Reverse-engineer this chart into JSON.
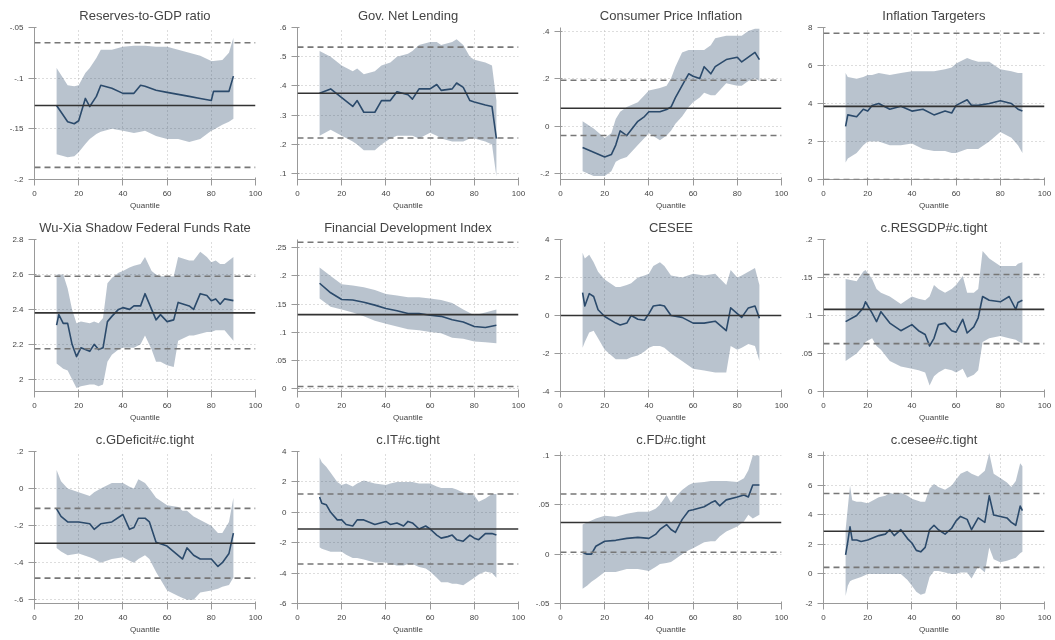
{
  "chart_data": [
    {
      "type": "line",
      "title": "Reserves-to-GDP ratio",
      "xlabel": "Quantile",
      "xlim": [
        0,
        100
      ],
      "xticks": [
        0,
        20,
        40,
        60,
        80,
        100
      ],
      "ylim": [
        -0.2,
        -0.05
      ],
      "yticks": [
        {
          "value": -0.2,
          "label": "-.2"
        },
        {
          "value": -0.15,
          "label": "-.15"
        },
        {
          "value": -0.1,
          "label": "-.1"
        },
        {
          "value": -0.05,
          "label": "-.05"
        }
      ],
      "grid": true,
      "line_style": "solid",
      "marker": "none",
      "series": [
        {
          "color": "#2b4a6b",
          "x": [
            10,
            15,
            18,
            20,
            23,
            25,
            28,
            30,
            35,
            40,
            45,
            48,
            50,
            55,
            60,
            65,
            70,
            75,
            80,
            81,
            85,
            88,
            90
          ],
          "values": [
            -0.127,
            -0.143,
            -0.145,
            -0.142,
            -0.12,
            -0.128,
            -0.118,
            -0.107,
            -0.11,
            -0.115,
            -0.115,
            -0.107,
            -0.108,
            -0.112,
            -0.114,
            -0.116,
            -0.118,
            -0.12,
            -0.122,
            -0.113,
            -0.113,
            -0.113,
            -0.098
          ],
          "lower": [
            -0.175,
            -0.178,
            -0.177,
            -0.173,
            -0.165,
            -0.16,
            -0.155,
            -0.153,
            -0.15,
            -0.152,
            -0.154,
            -0.153,
            -0.152,
            -0.157,
            -0.16,
            -0.16,
            -0.163,
            -0.16,
            -0.152,
            -0.151,
            -0.146,
            -0.143,
            -0.14
          ],
          "upper": [
            -0.09,
            -0.107,
            -0.108,
            -0.107,
            -0.095,
            -0.09,
            -0.08,
            -0.072,
            -0.072,
            -0.069,
            -0.068,
            -0.068,
            -0.068,
            -0.069,
            -0.069,
            -0.072,
            -0.075,
            -0.078,
            -0.083,
            -0.083,
            -0.082,
            -0.075,
            -0.06
          ]
        }
      ],
      "ref_lines": [
        {
          "axis": "y",
          "value": -0.127,
          "color": "#333333",
          "line_style": "solid"
        },
        {
          "axis": "y",
          "value": -0.065,
          "color": "#777777",
          "line_style": "dashed"
        },
        {
          "axis": "y",
          "value": -0.188,
          "color": "#777777",
          "line_style": "dashed"
        }
      ]
    },
    {
      "type": "line",
      "title": "Gov. Net Lending",
      "xlabel": "Quantile",
      "xlim": [
        0,
        100
      ],
      "xticks": [
        0,
        20,
        40,
        60,
        80,
        100
      ],
      "ylim": [
        0.08,
        0.6
      ],
      "yticks": [
        {
          "value": 0.1,
          "label": ".1"
        },
        {
          "value": 0.2,
          "label": ".2"
        },
        {
          "value": 0.3,
          "label": ".3"
        },
        {
          "value": 0.4,
          "label": ".4"
        },
        {
          "value": 0.5,
          "label": ".5"
        },
        {
          "value": 0.6,
          "label": ".6"
        }
      ],
      "grid": true,
      "line_style": "solid",
      "marker": "none",
      "series": [
        {
          "color": "#2b4a6b",
          "x": [
            10,
            15,
            20,
            25,
            27,
            30,
            35,
            38,
            42,
            45,
            50,
            52,
            55,
            60,
            63,
            65,
            70,
            72,
            75,
            78,
            80,
            85,
            88,
            90
          ],
          "values": [
            0.375,
            0.39,
            0.36,
            0.33,
            0.35,
            0.31,
            0.31,
            0.35,
            0.35,
            0.38,
            0.37,
            0.355,
            0.39,
            0.39,
            0.405,
            0.385,
            0.39,
            0.41,
            0.395,
            0.35,
            0.345,
            0.335,
            0.33,
            0.22
          ],
          "lower": [
            0.23,
            0.25,
            0.23,
            0.21,
            0.2,
            0.18,
            0.18,
            0.2,
            0.22,
            0.23,
            0.23,
            0.23,
            0.22,
            0.24,
            0.23,
            0.22,
            0.21,
            0.21,
            0.21,
            0.22,
            0.22,
            0.21,
            0.2,
            0.09
          ],
          "upper": [
            0.52,
            0.5,
            0.47,
            0.45,
            0.46,
            0.44,
            0.45,
            0.47,
            0.48,
            0.5,
            0.51,
            0.52,
            0.54,
            0.55,
            0.55,
            0.54,
            0.55,
            0.56,
            0.54,
            0.5,
            0.49,
            0.48,
            0.47,
            0.35
          ]
        }
      ],
      "ref_lines": [
        {
          "axis": "y",
          "value": 0.375,
          "color": "#333333",
          "line_style": "solid"
        },
        {
          "axis": "y",
          "value": 0.533,
          "color": "#777777",
          "line_style": "dashed"
        },
        {
          "axis": "y",
          "value": 0.222,
          "color": "#777777",
          "line_style": "dashed"
        }
      ]
    },
    {
      "type": "line",
      "title": "Consumer Price Inflation",
      "xlabel": "Quantile",
      "xlim": [
        0,
        100
      ],
      "xticks": [
        0,
        20,
        40,
        60,
        80,
        100
      ],
      "ylim": [
        -0.225,
        0.415
      ],
      "yticks": [
        {
          "value": -0.2,
          "label": "-.2"
        },
        0,
        {
          "value": 0.2,
          "label": ".2"
        },
        {
          "value": 0.4,
          "label": ".4"
        }
      ],
      "grid": true,
      "line_style": "solid",
      "marker": "none",
      "series": [
        {
          "color": "#2b4a6b",
          "x": [
            10,
            15,
            20,
            23,
            25,
            27,
            30,
            35,
            38,
            40,
            45,
            48,
            50,
            52,
            55,
            58,
            60,
            63,
            65,
            68,
            70,
            75,
            80,
            82,
            85,
            88,
            90
          ],
          "values": [
            -0.09,
            -0.11,
            -0.13,
            -0.12,
            -0.08,
            -0.02,
            -0.04,
            0.02,
            0.04,
            0.06,
            0.06,
            0.07,
            0.08,
            0.12,
            0.17,
            0.22,
            0.21,
            0.2,
            0.25,
            0.22,
            0.25,
            0.28,
            0.29,
            0.27,
            0.29,
            0.31,
            0.28
          ],
          "lower": [
            -0.19,
            -0.21,
            -0.21,
            -0.19,
            -0.15,
            -0.14,
            -0.13,
            -0.08,
            -0.05,
            -0.03,
            -0.06,
            -0.04,
            -0.02,
            0.01,
            0.04,
            0.08,
            0.1,
            0.12,
            0.14,
            0.13,
            0.13,
            0.18,
            0.17,
            0.17,
            0.19,
            0.2,
            0.19
          ],
          "upper": [
            0.02,
            -0.01,
            -0.05,
            -0.03,
            0.03,
            0.06,
            0.08,
            0.1,
            0.13,
            0.15,
            0.16,
            0.17,
            0.2,
            0.25,
            0.31,
            0.32,
            0.32,
            0.32,
            0.32,
            0.34,
            0.37,
            0.38,
            0.38,
            0.38,
            0.4,
            0.41,
            0.41
          ]
        }
      ],
      "ref_lines": [
        {
          "axis": "y",
          "value": 0.075,
          "color": "#333333",
          "line_style": "solid"
        },
        {
          "axis": "y",
          "value": 0.193,
          "color": "#777777",
          "line_style": "dashed"
        },
        {
          "axis": "y",
          "value": -0.04,
          "color": "#777777",
          "line_style": "dashed"
        }
      ]
    },
    {
      "type": "line",
      "title": "Inflation Targeters",
      "xlabel": "Quantile",
      "xlim": [
        0,
        100
      ],
      "xticks": [
        0,
        20,
        40,
        60,
        80,
        100
      ],
      "ylim": [
        0,
        8
      ],
      "yticks": [
        0,
        2,
        4,
        6,
        8
      ],
      "grid": true,
      "line_style": "solid",
      "marker": "none",
      "series": [
        {
          "color": "#2b4a6b",
          "x": [
            10,
            11,
            15,
            18,
            20,
            22,
            25,
            30,
            35,
            40,
            45,
            50,
            55,
            58,
            60,
            65,
            67,
            70,
            75,
            80,
            85,
            88,
            90
          ],
          "values": [
            2.8,
            3.4,
            3.3,
            3.7,
            3.6,
            3.9,
            4.0,
            3.7,
            3.85,
            3.6,
            3.7,
            3.4,
            3.6,
            3.5,
            3.9,
            4.2,
            3.9,
            3.9,
            4.0,
            4.15,
            4.0,
            3.7,
            3.6
          ],
          "lower": [
            0.9,
            1.1,
            1.4,
            1.8,
            2.0,
            2.0,
            2.0,
            1.8,
            1.8,
            1.9,
            1.6,
            1.5,
            1.5,
            1.4,
            1.4,
            1.6,
            1.6,
            1.6,
            2.0,
            2.5,
            2.2,
            1.8,
            1.4
          ],
          "upper": [
            5.6,
            5.4,
            5.3,
            5.4,
            5.5,
            5.5,
            5.6,
            5.5,
            5.6,
            5.7,
            5.7,
            5.7,
            5.8,
            5.9,
            6.1,
            6.4,
            6.3,
            6.2,
            6.2,
            5.8,
            5.7,
            5.6,
            5.6
          ]
        }
      ],
      "ref_lines": [
        {
          "axis": "y",
          "value": 3.85,
          "color": "#333333",
          "line_style": "solid"
        },
        {
          "axis": "y",
          "value": 7.7,
          "color": "#777777",
          "line_style": "dashed"
        },
        {
          "axis": "y",
          "value": 0,
          "color": "#777777",
          "line_style": "dashed"
        }
      ]
    },
    {
      "type": "line",
      "title": "Wu-Xia Shadow Federal Funds Rate",
      "xlabel": "Quantile",
      "xlim": [
        0,
        100
      ],
      "xticks": [
        0,
        20,
        40,
        60,
        80,
        100
      ],
      "ylim": [
        1.93,
        2.8
      ],
      "yticks": [
        2,
        2.2,
        2.4,
        2.6,
        2.8
      ],
      "grid": true,
      "line_style": "solid",
      "marker": "none",
      "series": [
        {
          "color": "#2b4a6b",
          "x": [
            10,
            11,
            13,
            15,
            17,
            19,
            21,
            25,
            27,
            29,
            31,
            33,
            35,
            38,
            40,
            43,
            45,
            48,
            50,
            53,
            55,
            57,
            60,
            63,
            65,
            70,
            72,
            75,
            78,
            80,
            82,
            84,
            86,
            90
          ],
          "values": [
            2.31,
            2.37,
            2.32,
            2.32,
            2.2,
            2.13,
            2.18,
            2.16,
            2.2,
            2.17,
            2.18,
            2.33,
            2.36,
            2.4,
            2.41,
            2.4,
            2.42,
            2.42,
            2.49,
            2.4,
            2.34,
            2.37,
            2.33,
            2.34,
            2.44,
            2.42,
            2.4,
            2.49,
            2.48,
            2.45,
            2.46,
            2.43,
            2.46,
            2.45
          ],
          "lower": [
            2.09,
            2.08,
            2.06,
            2.05,
            2.0,
            1.95,
            1.96,
            1.97,
            1.97,
            1.96,
            1.97,
            2.1,
            2.14,
            2.17,
            2.18,
            2.18,
            2.18,
            2.2,
            2.25,
            2.17,
            2.1,
            2.1,
            2.08,
            2.07,
            2.22,
            2.25,
            2.25,
            2.26,
            2.27,
            2.27,
            2.28,
            2.28,
            2.28,
            2.22
          ],
          "upper": [
            2.6,
            2.6,
            2.6,
            2.52,
            2.4,
            2.32,
            2.33,
            2.32,
            2.33,
            2.32,
            2.35,
            2.55,
            2.58,
            2.61,
            2.62,
            2.64,
            2.65,
            2.66,
            2.7,
            2.62,
            2.6,
            2.59,
            2.59,
            2.59,
            2.7,
            2.68,
            2.68,
            2.73,
            2.7,
            2.67,
            2.68,
            2.66,
            2.66,
            2.7
          ]
        }
      ],
      "ref_lines": [
        {
          "axis": "y",
          "value": 2.38,
          "color": "#333333",
          "line_style": "solid"
        },
        {
          "axis": "y",
          "value": 2.59,
          "color": "#777777",
          "line_style": "dashed"
        },
        {
          "axis": "y",
          "value": 2.175,
          "color": "#777777",
          "line_style": "dashed"
        }
      ]
    },
    {
      "type": "line",
      "title": "Financial Development Index",
      "xlabel": "Quantile",
      "xlim": [
        0,
        100
      ],
      "xticks": [
        0,
        20,
        40,
        60,
        80,
        100
      ],
      "ylim": [
        -0.006,
        0.265
      ],
      "yticks": [
        0,
        {
          "value": 0.05,
          "label": ".05"
        },
        {
          "value": 0.1,
          "label": ".1"
        },
        {
          "value": 0.15,
          "label": ".15"
        },
        {
          "value": 0.2,
          "label": ".2"
        },
        {
          "value": 0.25,
          "label": ".25"
        }
      ],
      "grid": true,
      "line_style": "solid",
      "marker": "none",
      "series": [
        {
          "color": "#2b4a6b",
          "x": [
            10,
            15,
            20,
            25,
            30,
            35,
            40,
            45,
            50,
            55,
            60,
            65,
            70,
            75,
            80,
            85,
            90
          ],
          "values": [
            0.187,
            0.17,
            0.158,
            0.157,
            0.153,
            0.148,
            0.142,
            0.138,
            0.133,
            0.133,
            0.13,
            0.128,
            0.122,
            0.118,
            0.11,
            0.108,
            0.112
          ],
          "lower": [
            0.16,
            0.145,
            0.14,
            0.135,
            0.128,
            0.12,
            0.115,
            0.11,
            0.105,
            0.103,
            0.1,
            0.098,
            0.09,
            0.088,
            0.083,
            0.082,
            0.08
          ],
          "upper": [
            0.215,
            0.2,
            0.185,
            0.183,
            0.18,
            0.175,
            0.168,
            0.165,
            0.162,
            0.162,
            0.16,
            0.157,
            0.152,
            0.14,
            0.13,
            0.135,
            0.14
          ]
        }
      ],
      "ref_lines": [
        {
          "axis": "y",
          "value": 0.131,
          "color": "#333333",
          "line_style": "solid"
        },
        {
          "axis": "y",
          "value": 0.26,
          "color": "#777777",
          "line_style": "dashed"
        },
        {
          "axis": "y",
          "value": 0.003,
          "color": "#777777",
          "line_style": "dashed"
        }
      ]
    },
    {
      "type": "line",
      "title": "CESEE",
      "xlabel": "Quantile",
      "xlim": [
        0,
        100
      ],
      "xticks": [
        0,
        20,
        40,
        60,
        80,
        100
      ],
      "ylim": [
        -4,
        4
      ],
      "yticks": [
        -4,
        -2,
        0,
        2,
        4
      ],
      "grid": true,
      "line_style": "solid",
      "marker": "none",
      "series": [
        {
          "color": "#2b4a6b",
          "x": [
            10,
            11,
            13,
            15,
            17,
            20,
            25,
            27,
            30,
            32,
            35,
            38,
            40,
            42,
            45,
            47,
            50,
            55,
            60,
            65,
            70,
            75,
            77,
            80,
            82,
            85,
            88,
            90
          ],
          "values": [
            1.2,
            0.5,
            1.15,
            1.0,
            0.3,
            -0.05,
            -0.4,
            -0.5,
            -0.4,
            0,
            -0.2,
            -0.25,
            0.1,
            0.5,
            0.55,
            0.5,
            0,
            -0.1,
            -0.4,
            -0.4,
            -0.3,
            -0.8,
            0.4,
            0.1,
            -0.1,
            0.4,
            0.5,
            -0.15
          ],
          "lower": [
            -1.7,
            -1.4,
            -0.9,
            -0.8,
            -1.2,
            -1.8,
            -2.3,
            -2.3,
            -2.3,
            -2.2,
            -2.1,
            -1.9,
            -1.7,
            -1.6,
            -1.6,
            -1.7,
            -2.0,
            -2.4,
            -2.8,
            -2.9,
            -3.0,
            -3.0,
            -1.6,
            -1.8,
            -1.7,
            -1.5,
            -1.6,
            -2.4
          ],
          "upper": [
            3.3,
            3.0,
            3.2,
            2.8,
            2.3,
            1.9,
            1.5,
            1.5,
            1.6,
            1.7,
            2.0,
            2.1,
            2.2,
            2.6,
            2.8,
            2.6,
            2.1,
            2.0,
            2.2,
            2.1,
            2.2,
            1.6,
            2.4,
            2.0,
            2.1,
            2.3,
            2.5,
            1.6
          ]
        }
      ],
      "ref_lines": [
        {
          "axis": "y",
          "value": 0,
          "color": "#333333",
          "line_style": "solid"
        }
      ]
    },
    {
      "type": "line",
      "title": "c.RESGDP#c.tight",
      "xlabel": "Quantile",
      "xlim": [
        0,
        100
      ],
      "xticks": [
        0,
        20,
        40,
        60,
        80,
        100
      ],
      "ylim": [
        0,
        0.2
      ],
      "yticks": [
        0,
        {
          "value": 0.05,
          "label": ".05"
        },
        {
          "value": 0.1,
          "label": ".1"
        },
        {
          "value": 0.15,
          "label": ".15"
        },
        {
          "value": 0.2,
          "label": ".2"
        }
      ],
      "grid": true,
      "line_style": "solid",
      "marker": "none",
      "series": [
        {
          "color": "#2b4a6b",
          "x": [
            10,
            15,
            18,
            19,
            22,
            24,
            26,
            30,
            35,
            40,
            43,
            46,
            48,
            50,
            52,
            55,
            58,
            60,
            63,
            65,
            68,
            70,
            72,
            75,
            80,
            84,
            87,
            88,
            90
          ],
          "values": [
            0.092,
            0.1,
            0.11,
            0.118,
            0.103,
            0.092,
            0.105,
            0.09,
            0.08,
            0.088,
            0.08,
            0.075,
            0.06,
            0.07,
            0.088,
            0.09,
            0.08,
            0.078,
            0.095,
            0.077,
            0.085,
            0.097,
            0.125,
            0.12,
            0.118,
            0.125,
            0.108,
            0.117,
            0.12
          ],
          "lower": [
            0.04,
            0.05,
            0.06,
            0.065,
            0.07,
            0.06,
            0.055,
            0.04,
            0.033,
            0.03,
            0.028,
            0.025,
            0.008,
            0.02,
            0.025,
            0.03,
            0.028,
            0.025,
            0.03,
            0.018,
            0.022,
            0.028,
            0.065,
            0.07,
            0.073,
            0.07,
            0.068,
            0.066,
            0.063
          ],
          "upper": [
            0.148,
            0.145,
            0.158,
            0.16,
            0.148,
            0.135,
            0.13,
            0.125,
            0.115,
            0.125,
            0.122,
            0.12,
            0.125,
            0.14,
            0.135,
            0.13,
            0.135,
            0.14,
            0.152,
            0.13,
            0.13,
            0.135,
            0.185,
            0.175,
            0.165,
            0.165,
            0.165,
            0.168,
            0.17
          ]
        }
      ],
      "ref_lines": [
        {
          "axis": "y",
          "value": 0.108,
          "color": "#333333",
          "line_style": "solid"
        },
        {
          "axis": "y",
          "value": 0.154,
          "color": "#777777",
          "line_style": "dashed"
        },
        {
          "axis": "y",
          "value": 0.063,
          "color": "#777777",
          "line_style": "dashed"
        }
      ]
    },
    {
      "type": "line",
      "title": "c.GDeficit#c.tight",
      "xlabel": "Quantile",
      "xlim": [
        0,
        100
      ],
      "xticks": [
        0,
        20,
        40,
        60,
        80,
        100
      ],
      "ylim": [
        -0.62,
        0.2
      ],
      "yticks": [
        {
          "value": -0.6,
          "label": "-.6"
        },
        {
          "value": -0.4,
          "label": "-.4"
        },
        {
          "value": -0.2,
          "label": "-.2"
        },
        0,
        {
          "value": 0.2,
          "label": ".2"
        }
      ],
      "grid": true,
      "line_style": "solid",
      "marker": "none",
      "series": [
        {
          "color": "#2b4a6b",
          "x": [
            10,
            12,
            15,
            20,
            25,
            27,
            30,
            35,
            40,
            43,
            45,
            47,
            50,
            52,
            55,
            60,
            65,
            67,
            69,
            72,
            75,
            80,
            83,
            85,
            88,
            90
          ],
          "values": [
            -0.11,
            -0.15,
            -0.18,
            -0.18,
            -0.19,
            -0.22,
            -0.19,
            -0.18,
            -0.14,
            -0.22,
            -0.21,
            -0.16,
            -0.16,
            -0.18,
            -0.29,
            -0.31,
            -0.36,
            -0.38,
            -0.32,
            -0.36,
            -0.38,
            -0.38,
            -0.42,
            -0.4,
            -0.35,
            -0.24
          ],
          "lower": [
            -0.32,
            -0.34,
            -0.36,
            -0.35,
            -0.37,
            -0.38,
            -0.4,
            -0.38,
            -0.37,
            -0.39,
            -0.4,
            -0.38,
            -0.36,
            -0.38,
            -0.45,
            -0.55,
            -0.58,
            -0.59,
            -0.6,
            -0.6,
            -0.56,
            -0.55,
            -0.54,
            -0.53,
            -0.52,
            -0.48
          ],
          "upper": [
            0.1,
            0.04,
            0.0,
            -0.02,
            -0.04,
            -0.02,
            0.0,
            0.03,
            0.03,
            0.01,
            0.0,
            0.05,
            0.03,
            0.0,
            -0.05,
            -0.09,
            -0.1,
            -0.12,
            -0.12,
            -0.15,
            -0.17,
            -0.2,
            -0.24,
            -0.24,
            -0.18,
            -0.05
          ]
        }
      ],
      "ref_lines": [
        {
          "axis": "y",
          "value": -0.295,
          "color": "#333333",
          "line_style": "solid"
        },
        {
          "axis": "y",
          "value": -0.107,
          "color": "#777777",
          "line_style": "dashed"
        },
        {
          "axis": "y",
          "value": -0.483,
          "color": "#777777",
          "line_style": "dashed"
        }
      ]
    },
    {
      "type": "line",
      "title": "c.IT#c.tight",
      "xlabel": "Quantile",
      "xlim": [
        0,
        100
      ],
      "xticks": [
        0,
        20,
        40,
        60,
        80,
        100
      ],
      "ylim": [
        -6,
        4
      ],
      "yticks": [
        -6,
        -4,
        -2,
        0,
        2,
        4
      ],
      "grid": true,
      "line_style": "solid",
      "marker": "none",
      "series": [
        {
          "color": "#2b4a6b",
          "x": [
            10,
            11,
            13,
            15,
            18,
            20,
            22,
            25,
            27,
            30,
            35,
            40,
            42,
            45,
            48,
            50,
            52,
            55,
            58,
            60,
            63,
            65,
            68,
            70,
            72,
            75,
            78,
            80,
            82,
            85,
            88,
            90
          ],
          "values": [
            1.0,
            0.6,
            0.5,
            0.0,
            -0.5,
            -0.5,
            -0.8,
            -0.9,
            -0.5,
            -0.5,
            -0.8,
            -0.6,
            -0.8,
            -0.7,
            -0.9,
            -0.6,
            -0.7,
            -1.1,
            -0.9,
            -1.1,
            -1.5,
            -1.7,
            -1.6,
            -1.5,
            -1.8,
            -1.9,
            -1.5,
            -1.7,
            -1.8,
            -1.4,
            -1.4,
            -1.5
          ],
          "lower": [
            -2.3,
            -2.4,
            -2.5,
            -2.6,
            -2.6,
            -2.6,
            -2.8,
            -3.0,
            -3.0,
            -3.1,
            -3.3,
            -3.3,
            -3.4,
            -3.5,
            -3.5,
            -3.4,
            -3.4,
            -3.6,
            -3.7,
            -3.9,
            -4.3,
            -4.6,
            -4.6,
            -4.7,
            -4.7,
            -4.8,
            -4.5,
            -4.3,
            -4.1,
            -3.9,
            -4.0,
            -4.3
          ],
          "upper": [
            3.6,
            3.3,
            3.0,
            2.6,
            2.0,
            1.8,
            1.9,
            1.7,
            1.9,
            2.1,
            1.9,
            1.8,
            1.9,
            2.0,
            2.0,
            2.0,
            2.0,
            1.9,
            1.9,
            1.9,
            1.7,
            1.6,
            1.6,
            1.6,
            1.5,
            1.3,
            1.2,
            1.1,
            0.7,
            0.9,
            1.2,
            1.2
          ]
        }
      ],
      "ref_lines": [
        {
          "axis": "y",
          "value": -1.1,
          "color": "#333333",
          "line_style": "solid"
        },
        {
          "axis": "y",
          "value": 1.2,
          "color": "#777777",
          "line_style": "dashed"
        },
        {
          "axis": "y",
          "value": -3.4,
          "color": "#777777",
          "line_style": "dashed"
        }
      ]
    },
    {
      "type": "line",
      "title": "c.FD#c.tight",
      "xlabel": "Quantile",
      "xlim": [
        0,
        100
      ],
      "xticks": [
        0,
        20,
        40,
        60,
        80,
        100
      ],
      "ylim": [
        -0.05,
        0.104
      ],
      "yticks": [
        {
          "value": -0.05,
          "label": "-.05"
        },
        0,
        {
          "value": 0.05,
          "label": ".05"
        },
        {
          "value": 0.1,
          "label": ".1"
        }
      ],
      "grid": true,
      "line_style": "solid",
      "marker": "none",
      "series": [
        {
          "color": "#2b4a6b",
          "x": [
            10,
            12,
            14,
            16,
            20,
            25,
            30,
            35,
            40,
            43,
            45,
            48,
            50,
            52,
            55,
            58,
            60,
            65,
            68,
            70,
            72,
            75,
            80,
            83,
            85,
            87,
            90
          ],
          "values": [
            0.002,
            0,
            0,
            0.008,
            0.013,
            0.014,
            0.016,
            0.017,
            0.016,
            0.02,
            0.025,
            0.03,
            0.025,
            0.022,
            0.035,
            0.044,
            0.045,
            0.048,
            0.052,
            0.054,
            0.049,
            0.055,
            0.058,
            0.06,
            0.058,
            0.07,
            0.07
          ],
          "lower": [
            -0.035,
            -0.032,
            -0.028,
            -0.025,
            -0.018,
            -0.018,
            -0.015,
            -0.015,
            -0.017,
            -0.013,
            -0.01,
            -0.009,
            -0.008,
            -0.005,
            0,
            0.004,
            0.006,
            0.012,
            0.013,
            0.013,
            0.018,
            0.023,
            0.028,
            0.033,
            0.04,
            0.036,
            0.04
          ],
          "upper": [
            0.03,
            0.032,
            0.034,
            0.036,
            0.039,
            0.038,
            0.041,
            0.043,
            0.043,
            0.046,
            0.05,
            0.06,
            0.052,
            0.058,
            0.065,
            0.07,
            0.072,
            0.073,
            0.074,
            0.074,
            0.074,
            0.074,
            0.073,
            0.077,
            0.085,
            0.1,
            0.1
          ]
        }
      ],
      "ref_lines": [
        {
          "axis": "y",
          "value": 0.032,
          "color": "#333333",
          "line_style": "solid"
        },
        {
          "axis": "y",
          "value": 0.061,
          "color": "#777777",
          "line_style": "dashed"
        },
        {
          "axis": "y",
          "value": 0.002,
          "color": "#777777",
          "line_style": "dashed"
        }
      ]
    },
    {
      "type": "line",
      "title": "c.cesee#c.tight",
      "xlabel": "Quantile",
      "xlim": [
        0,
        100
      ],
      "xticks": [
        0,
        20,
        40,
        60,
        80,
        100
      ],
      "ylim": [
        -2,
        8.3
      ],
      "yticks": [
        -2,
        0,
        2,
        4,
        6,
        8
      ],
      "grid": true,
      "line_style": "solid",
      "marker": "none",
      "series": [
        {
          "color": "#2b4a6b",
          "x": [
            10,
            11,
            12,
            13,
            15,
            17,
            20,
            25,
            28,
            30,
            32,
            35,
            38,
            40,
            42,
            44,
            46,
            48,
            50,
            52,
            55,
            58,
            60,
            62,
            65,
            67,
            70,
            73,
            75,
            77,
            80,
            83,
            85,
            87,
            89,
            90
          ],
          "values": [
            1.3,
            2.2,
            3.2,
            2.3,
            2.3,
            2.2,
            2.3,
            2.6,
            2.7,
            3.0,
            2.6,
            3.0,
            2.4,
            2.1,
            1.6,
            1.5,
            1.8,
            3.0,
            3.3,
            3.0,
            2.7,
            3.1,
            3.6,
            3.9,
            3.7,
            3.0,
            3.8,
            3.5,
            5.3,
            4.0,
            3.9,
            3.8,
            3.5,
            3.3,
            4.6,
            4.3
          ],
          "lower": [
            -1.5,
            -0.8,
            -0.5,
            -0.4,
            -0.3,
            -0.2,
            0.0,
            0.0,
            0.0,
            0.0,
            0.0,
            0.0,
            -0.4,
            -0.8,
            -1.2,
            -1.4,
            -1.3,
            -0.2,
            0.2,
            0.2,
            0.1,
            0.0,
            0.0,
            0.1,
            0.1,
            -0.3,
            0.5,
            0.1,
            1.8,
            1.0,
            0.8,
            0.9,
            1.0,
            1.1,
            1.4,
            1.5
          ],
          "upper": [
            3.0,
            4.5,
            6.0,
            5.0,
            4.9,
            4.9,
            4.8,
            5.2,
            5.3,
            5.5,
            5.4,
            5.5,
            5.3,
            5.1,
            5.0,
            4.9,
            4.9,
            5.8,
            6.1,
            5.9,
            5.7,
            6.0,
            6.4,
            6.8,
            7.0,
            6.8,
            6.6,
            7.0,
            8.2,
            6.8,
            6.5,
            6.2,
            5.9,
            6.3,
            7.5,
            7.3
          ]
        }
      ],
      "ref_lines": [
        {
          "axis": "y",
          "value": 2.9,
          "color": "#333333",
          "line_style": "solid"
        },
        {
          "axis": "y",
          "value": 5.45,
          "color": "#777777",
          "line_style": "dashed"
        },
        {
          "axis": "y",
          "value": 0.45,
          "color": "#777777",
          "line_style": "dashed"
        }
      ]
    }
  ]
}
